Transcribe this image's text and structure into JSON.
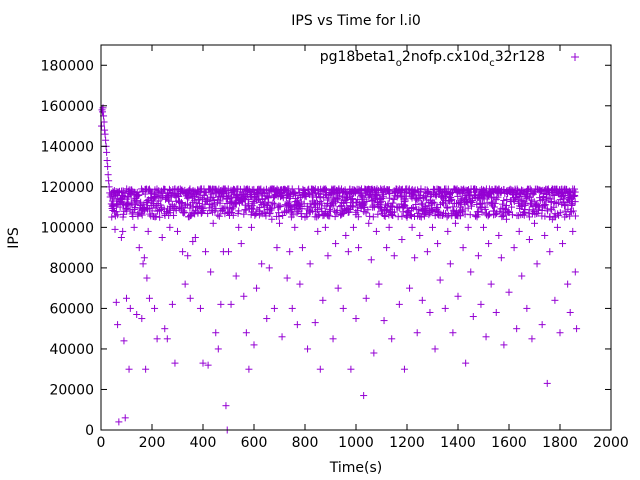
{
  "chart_data": {
    "type": "scatter",
    "title": "IPS vs Time for l.i0",
    "xlabel": "Time(s)",
    "ylabel": "IPS",
    "xlim": [
      0,
      2000
    ],
    "ylim": [
      0,
      190000
    ],
    "xticks": [
      0,
      200,
      400,
      600,
      800,
      1000,
      1200,
      1400,
      1600,
      1800,
      2000
    ],
    "yticks": [
      0,
      20000,
      40000,
      60000,
      80000,
      100000,
      120000,
      140000,
      160000,
      180000
    ],
    "grid": false,
    "legend_position": "top-right",
    "series": [
      {
        "name": "pg18beta1_o2nofp.cx10d_c32r128",
        "legend_main": "pg18beta1",
        "legend_sub1": "o",
        "legend_mid": "2nofp.cx10d",
        "legend_sub2": "c",
        "legend_end": "32r128",
        "color": "#9400d3",
        "marker": "plus",
        "points": [
          [
            2,
            150000
          ],
          [
            4,
            158000
          ],
          [
            6,
            157000
          ],
          [
            8,
            159000
          ],
          [
            10,
            155000
          ],
          [
            12,
            152000
          ],
          [
            14,
            148000
          ],
          [
            16,
            146000
          ],
          [
            18,
            143000
          ],
          [
            20,
            140000
          ],
          [
            22,
            137000
          ],
          [
            24,
            133000
          ],
          [
            26,
            130000
          ],
          [
            28,
            126000
          ],
          [
            30,
            123000
          ],
          [
            32,
            120000
          ],
          [
            34,
            117000
          ],
          [
            36,
            115000
          ],
          [
            40,
            116000
          ],
          [
            45,
            113000
          ],
          [
            50,
            114000
          ],
          [
            55,
            99000
          ],
          [
            60,
            63000
          ],
          [
            65,
            52000
          ],
          [
            70,
            4000
          ],
          [
            75,
            110000
          ],
          [
            80,
            95000
          ],
          [
            85,
            98000
          ],
          [
            90,
            44000
          ],
          [
            95,
            6000
          ],
          [
            100,
            65000
          ],
          [
            105,
            115000
          ],
          [
            110,
            30000
          ],
          [
            115,
            60000
          ],
          [
            120,
            112000
          ],
          [
            130,
            100000
          ],
          [
            140,
            57000
          ],
          [
            150,
            90000
          ],
          [
            160,
            55000
          ],
          [
            165,
            82000
          ],
          [
            170,
            85000
          ],
          [
            175,
            30000
          ],
          [
            180,
            75000
          ],
          [
            185,
            98000
          ],
          [
            190,
            65000
          ],
          [
            200,
            113000
          ],
          [
            210,
            60000
          ],
          [
            220,
            45000
          ],
          [
            230,
            105000
          ],
          [
            240,
            95000
          ],
          [
            250,
            50000
          ],
          [
            260,
            45000
          ],
          [
            270,
            100000
          ],
          [
            280,
            62000
          ],
          [
            290,
            33000
          ],
          [
            300,
            98000
          ],
          [
            310,
            110000
          ],
          [
            320,
            88000
          ],
          [
            330,
            72000
          ],
          [
            340,
            86000
          ],
          [
            350,
            65000
          ],
          [
            360,
            93000
          ],
          [
            370,
            95000
          ],
          [
            380,
            107000
          ],
          [
            390,
            60000
          ],
          [
            400,
            33000
          ],
          [
            410,
            88000
          ],
          [
            420,
            32000
          ],
          [
            430,
            78000
          ],
          [
            440,
            102000
          ],
          [
            450,
            48000
          ],
          [
            460,
            40000
          ],
          [
            470,
            62000
          ],
          [
            480,
            88000
          ],
          [
            490,
            12000
          ],
          [
            495,
            0
          ],
          [
            500,
            88000
          ],
          [
            510,
            62000
          ],
          [
            520,
            110000
          ],
          [
            530,
            76000
          ],
          [
            540,
            100000
          ],
          [
            550,
            92000
          ],
          [
            560,
            66000
          ],
          [
            570,
            48000
          ],
          [
            580,
            30000
          ],
          [
            590,
            100000
          ],
          [
            600,
            42000
          ],
          [
            610,
            70000
          ],
          [
            620,
            108000
          ],
          [
            630,
            82000
          ],
          [
            640,
            110000
          ],
          [
            650,
            55000
          ],
          [
            660,
            80000
          ],
          [
            670,
            104000
          ],
          [
            680,
            60000
          ],
          [
            690,
            90000
          ],
          [
            700,
            102000
          ],
          [
            710,
            46000
          ],
          [
            720,
            108000
          ],
          [
            730,
            75000
          ],
          [
            740,
            88000
          ],
          [
            750,
            60000
          ],
          [
            760,
            100000
          ],
          [
            770,
            52000
          ],
          [
            780,
            72000
          ],
          [
            790,
            90000
          ],
          [
            800,
            105000
          ],
          [
            810,
            40000
          ],
          [
            820,
            82000
          ],
          [
            830,
            108000
          ],
          [
            840,
            53000
          ],
          [
            850,
            98000
          ],
          [
            860,
            30000
          ],
          [
            870,
            64000
          ],
          [
            880,
            100000
          ],
          [
            890,
            86000
          ],
          [
            900,
            108000
          ],
          [
            910,
            45000
          ],
          [
            920,
            92000
          ],
          [
            930,
            70000
          ],
          [
            940,
            106000
          ],
          [
            950,
            60000
          ],
          [
            960,
            96000
          ],
          [
            970,
            88000
          ],
          [
            980,
            30000
          ],
          [
            990,
            100000
          ],
          [
            1000,
            55000
          ],
          [
            1010,
            90000
          ],
          [
            1020,
            110000
          ],
          [
            1030,
            17000
          ],
          [
            1040,
            65000
          ],
          [
            1050,
            102000
          ],
          [
            1060,
            84000
          ],
          [
            1070,
            38000
          ],
          [
            1080,
            98000
          ],
          [
            1090,
            72000
          ],
          [
            1100,
            108000
          ],
          [
            1110,
            54000
          ],
          [
            1120,
            90000
          ],
          [
            1130,
            100000
          ],
          [
            1140,
            45000
          ],
          [
            1150,
            86000
          ],
          [
            1160,
            110000
          ],
          [
            1170,
            62000
          ],
          [
            1180,
            94000
          ],
          [
            1190,
            30000
          ],
          [
            1200,
            105000
          ],
          [
            1210,
            70000
          ],
          [
            1220,
            100000
          ],
          [
            1230,
            85000
          ],
          [
            1240,
            48000
          ],
          [
            1250,
            96000
          ],
          [
            1260,
            64000
          ],
          [
            1270,
            108000
          ],
          [
            1280,
            88000
          ],
          [
            1290,
            58000
          ],
          [
            1300,
            100000
          ],
          [
            1310,
            40000
          ],
          [
            1320,
            92000
          ],
          [
            1330,
            74000
          ],
          [
            1340,
            106000
          ],
          [
            1350,
            60000
          ],
          [
            1360,
            98000
          ],
          [
            1370,
            82000
          ],
          [
            1380,
            48000
          ],
          [
            1390,
            102000
          ],
          [
            1400,
            66000
          ],
          [
            1410,
            110000
          ],
          [
            1420,
            90000
          ],
          [
            1430,
            33000
          ],
          [
            1440,
            100000
          ],
          [
            1450,
            78000
          ],
          [
            1460,
            56000
          ],
          [
            1470,
            106000
          ],
          [
            1480,
            86000
          ],
          [
            1490,
            62000
          ],
          [
            1500,
            100000
          ],
          [
            1510,
            46000
          ],
          [
            1520,
            92000
          ],
          [
            1530,
            72000
          ],
          [
            1540,
            108000
          ],
          [
            1550,
            58000
          ],
          [
            1560,
            96000
          ],
          [
            1570,
            85000
          ],
          [
            1580,
            42000
          ],
          [
            1590,
            104000
          ],
          [
            1600,
            68000
          ],
          [
            1610,
            110000
          ],
          [
            1620,
            90000
          ],
          [
            1630,
            50000
          ],
          [
            1640,
            98000
          ],
          [
            1650,
            76000
          ],
          [
            1660,
            106000
          ],
          [
            1670,
            60000
          ],
          [
            1680,
            94000
          ],
          [
            1690,
            45000
          ],
          [
            1700,
            102000
          ],
          [
            1710,
            82000
          ],
          [
            1720,
            110000
          ],
          [
            1730,
            52000
          ],
          [
            1740,
            96000
          ],
          [
            1750,
            23000
          ],
          [
            1760,
            88000
          ],
          [
            1770,
            104000
          ],
          [
            1780,
            64000
          ],
          [
            1790,
            100000
          ],
          [
            1800,
            48000
          ],
          [
            1810,
            92000
          ],
          [
            1820,
            108000
          ],
          [
            1830,
            72000
          ],
          [
            1840,
            58000
          ],
          [
            1850,
            98000
          ],
          [
            1860,
            78000
          ],
          [
            1865,
            50000
          ]
        ],
        "band": {
          "x": [
            40,
            1860
          ],
          "y": [
            105000,
            119000
          ]
        }
      }
    ]
  }
}
